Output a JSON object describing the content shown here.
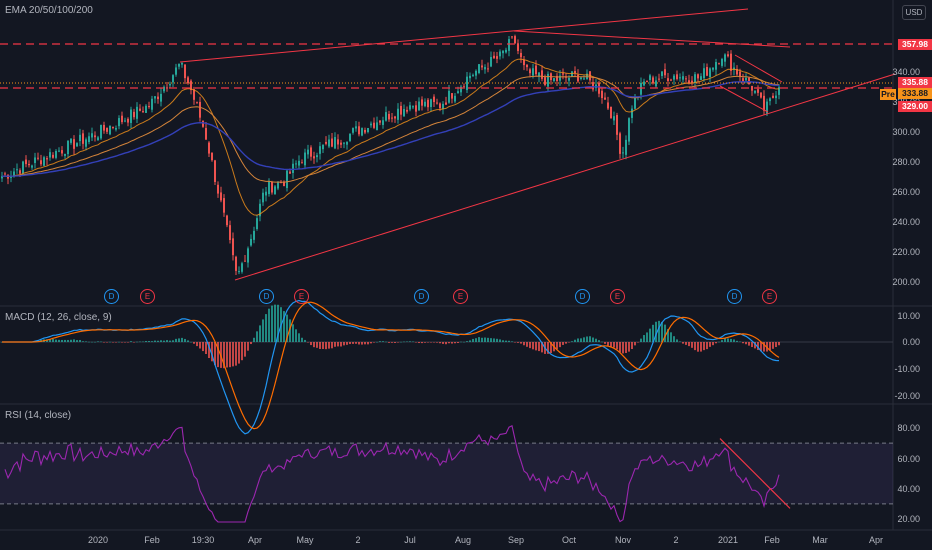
{
  "panels": {
    "price": {
      "title": "EMA 20/50/100/200"
    },
    "macd": {
      "title": "MACD (12, 26, close, 9)"
    },
    "rsi": {
      "title": "RSI (14, close)"
    }
  },
  "currency_badge": "USD",
  "price_axis": {
    "ticks": [
      "340.00",
      "320.00",
      "300.00",
      "280.00",
      "260.00",
      "240.00",
      "220.00",
      "200.00"
    ],
    "tags": [
      {
        "label": "357.98",
        "color": "#f23645"
      },
      {
        "label": "335.88",
        "color": "#f23645"
      },
      {
        "label": "333.88",
        "color": "#f7931a"
      },
      {
        "label": "329.00",
        "color": "#f23645"
      },
      {
        "label": "Pre",
        "color": "#f7931a"
      }
    ]
  },
  "macd_axis": {
    "ticks": [
      "10.00",
      "0.00",
      "-10.00",
      "-20.00"
    ]
  },
  "rsi_axis": {
    "ticks": [
      "80.00",
      "60.00",
      "40.00",
      "20.00"
    ]
  },
  "time_axis": {
    "ticks": [
      "2020",
      "Feb",
      "19:30",
      "Apr",
      "May",
      "2",
      "Jul",
      "Aug",
      "Sep",
      "Oct",
      "Nov",
      "2",
      "2021",
      "Feb",
      "Mar",
      "Apr"
    ]
  },
  "events": [
    "D",
    "E",
    "D",
    "E",
    "D",
    "E",
    "D",
    "E",
    "D",
    "E"
  ],
  "chart_data": {
    "type": "candlestick",
    "title": "EMA 20/50/100/200",
    "x_range": [
      "2020",
      "Apr"
    ],
    "price": {
      "ylim": [
        195,
        365
      ],
      "ylabel": "USD",
      "series_note": "approximate closing path",
      "x": [
        "2020-01",
        "2020-02",
        "2020-02",
        "2020-03",
        "2020-03",
        "2020-04",
        "2020-05",
        "2020-06",
        "2020-07",
        "2020-08",
        "2020-08",
        "2020-09",
        "2020-10",
        "2020-11",
        "2020-11",
        "2020-12",
        "2021-01",
        "2021-01",
        "2021-02"
      ],
      "close": [
        270,
        285,
        345,
        292,
        202,
        262,
        282,
        300,
        315,
        340,
        360,
        335,
        330,
        285,
        340,
        338,
        350,
        325,
        334
      ],
      "horizontal_levels": [
        357.98,
        335.88,
        329.0
      ],
      "legend": [
        "EMA 20",
        "EMA 50",
        "EMA 100",
        "EMA 200"
      ]
    },
    "macd": {
      "ylim": [
        -22,
        12
      ]
    },
    "rsi": {
      "ylim": [
        15,
        90
      ],
      "bands": [
        70,
        30
      ]
    }
  }
}
